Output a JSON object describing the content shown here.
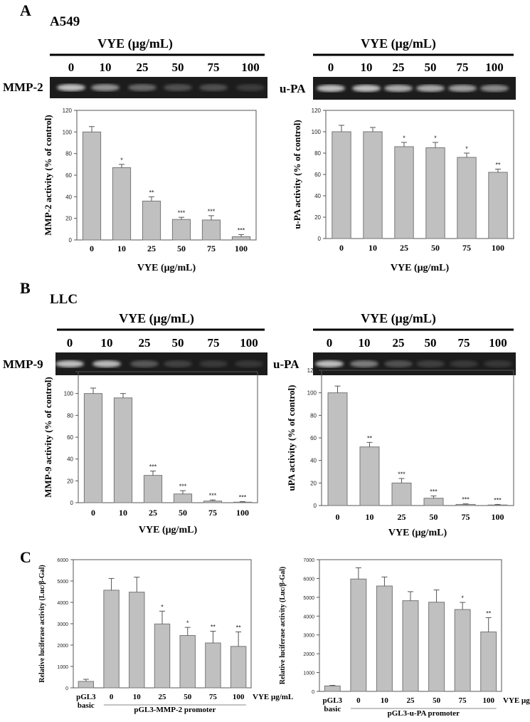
{
  "panels": {
    "A": {
      "letter": "A",
      "cell_line": "A549"
    },
    "B": {
      "letter": "B",
      "cell_line": "LLC"
    },
    "C": {
      "letter": "C"
    }
  },
  "gels": [
    {
      "id": "A-left",
      "header": "VYE (μg/mL)",
      "lanes": [
        "0",
        "10",
        "25",
        "50",
        "75",
        "100"
      ],
      "label": "MMP-2"
    },
    {
      "id": "A-right",
      "header": "VYE (μg/mL)",
      "lanes": [
        "0",
        "10",
        "25",
        "50",
        "75",
        "100"
      ],
      "label": "u-PA"
    },
    {
      "id": "B-left",
      "header": "VYE (μg/mL)",
      "lanes": [
        "0",
        "10",
        "25",
        "50",
        "75",
        "100"
      ],
      "label": "MMP-9"
    },
    {
      "id": "B-right",
      "header": "VYE (μg/mL)",
      "lanes": [
        "0",
        "10",
        "25",
        "50",
        "75",
        "100"
      ],
      "label": "u-PA"
    }
  ],
  "chart_data": [
    {
      "id": "A-left",
      "type": "bar",
      "categories": [
        "0",
        "10",
        "25",
        "50",
        "75",
        "100"
      ],
      "values": [
        100,
        67,
        36,
        19,
        18.5,
        3
      ],
      "errors": [
        5,
        3,
        4,
        2,
        4,
        2
      ],
      "significance": [
        "",
        "*",
        "**",
        "***",
        "***",
        "***"
      ],
      "ylabel": "MMP-2 activity (% of control)",
      "xlabel": "VYE (μg/mL)",
      "ylim": [
        0,
        120
      ],
      "yticks": [
        0,
        20,
        40,
        60,
        80,
        100,
        120
      ],
      "bar_color": "#c0c0c0"
    },
    {
      "id": "A-right",
      "type": "bar",
      "categories": [
        "0",
        "10",
        "25",
        "50",
        "75",
        "100"
      ],
      "values": [
        100,
        100,
        86,
        85,
        76,
        62
      ],
      "errors": [
        6,
        4,
        4,
        5,
        4,
        3
      ],
      "significance": [
        "",
        "",
        "*",
        "*",
        "*",
        "**"
      ],
      "ylabel": "u-PA activity (% of control)",
      "xlabel": "VYE (μg/mL)",
      "ylim": [
        0,
        120
      ],
      "yticks": [
        0,
        20,
        40,
        60,
        80,
        100,
        120
      ],
      "bar_color": "#c0c0c0"
    },
    {
      "id": "B-left",
      "type": "bar",
      "categories": [
        "0",
        "10",
        "25",
        "50",
        "75",
        "100"
      ],
      "values": [
        100,
        96,
        25,
        8,
        1.5,
        0.5
      ],
      "errors": [
        5,
        4,
        4,
        3,
        1,
        0.5
      ],
      "significance": [
        "",
        "",
        "***",
        "***",
        "***",
        "***"
      ],
      "ylabel": "MMP-9 activity (% of control)",
      "xlabel": "VYE (μg/mL)",
      "ylim": [
        0,
        120
      ],
      "yticks": [
        0,
        20,
        40,
        60,
        80,
        100,
        120
      ],
      "bar_color": "#c0c0c0"
    },
    {
      "id": "B-right",
      "type": "bar",
      "categories": [
        "0",
        "10",
        "25",
        "50",
        "75",
        "100"
      ],
      "values": [
        100,
        52,
        20,
        6.5,
        1,
        0.5
      ],
      "errors": [
        6,
        4,
        4,
        2,
        0.5,
        0.5
      ],
      "significance": [
        "",
        "**",
        "***",
        "***",
        "***",
        "***"
      ],
      "ylabel": "uPA activity (% of control)",
      "xlabel": "VYE (μg/mL)",
      "ylim": [
        0,
        120
      ],
      "yticks": [
        0,
        20,
        40,
        60,
        80,
        100,
        120
      ],
      "bar_color": "#c0c0c0"
    },
    {
      "id": "C-left",
      "type": "bar",
      "categories": [
        "pGL3 basic",
        "0",
        "10",
        "25",
        "50",
        "75",
        "100"
      ],
      "values": [
        300,
        4570,
        4480,
        2990,
        2450,
        2100,
        1940
      ],
      "errors": [
        100,
        550,
        700,
        600,
        380,
        550,
        680
      ],
      "significance": [
        "",
        "",
        "",
        "*",
        "*",
        "**",
        "**"
      ],
      "ylabel": "Relative luciferase activity (Luc/β-Gal)",
      "xunit": "VYE μg/mL",
      "group_label": "pGL3-MMP-2 promoter",
      "ylim": [
        0,
        6000
      ],
      "yticks": [
        0,
        1000,
        2000,
        3000,
        4000,
        5000,
        6000
      ],
      "bar_color": "#c0c0c0"
    },
    {
      "id": "C-right",
      "type": "bar",
      "categories": [
        "pGL3 basic",
        "0",
        "10",
        "25",
        "50",
        "75",
        "100"
      ],
      "values": [
        290,
        5970,
        5600,
        4820,
        4740,
        4350,
        3160
      ],
      "errors": [
        30,
        600,
        480,
        480,
        650,
        380,
        760
      ],
      "significance": [
        "",
        "",
        "",
        "",
        "",
        "*",
        "**"
      ],
      "ylabel": "Relative luciferase activity (Luc/β-Gal)",
      "xunit": "VYE μg/mL",
      "group_label": "pGL3-u-PA promoter",
      "ylim": [
        0,
        7000
      ],
      "yticks": [
        0,
        1000,
        2000,
        3000,
        4000,
        5000,
        6000,
        7000
      ],
      "bar_color": "#c0c0c0"
    }
  ]
}
